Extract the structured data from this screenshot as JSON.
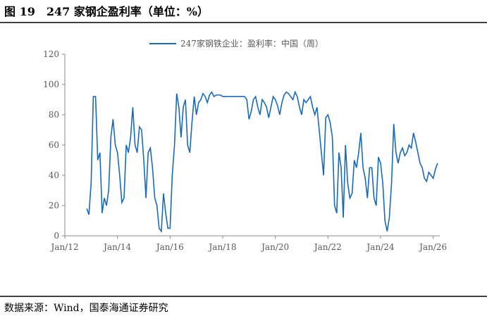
{
  "header": {
    "title": "图 19　247 家钢企盈利率（单位：%）"
  },
  "footer": {
    "source": "数据来源：Wind，国泰海通证券研究"
  },
  "chart_data": {
    "type": "line",
    "x": [
      "2012-11",
      "2012-12",
      "2013-01",
      "2013-02",
      "2013-03",
      "2013-04",
      "2013-05",
      "2013-06",
      "2013-07",
      "2013-08",
      "2013-09",
      "2013-10",
      "2013-11",
      "2013-12",
      "2014-01",
      "2014-02",
      "2014-03",
      "2014-04",
      "2014-05",
      "2014-06",
      "2014-07",
      "2014-08",
      "2014-09",
      "2014-10",
      "2014-11",
      "2014-12",
      "2015-01",
      "2015-02",
      "2015-03",
      "2015-04",
      "2015-05",
      "2015-06",
      "2015-07",
      "2015-08",
      "2015-09",
      "2015-10",
      "2015-11",
      "2015-12",
      "2016-01",
      "2016-02",
      "2016-03",
      "2016-04",
      "2016-05",
      "2016-06",
      "2016-07",
      "2016-08",
      "2016-09",
      "2016-10",
      "2016-11",
      "2016-12",
      "2017-01",
      "2017-02",
      "2017-03",
      "2017-04",
      "2017-05",
      "2017-06",
      "2017-07",
      "2017-08",
      "2017-09",
      "2017-10",
      "2017-11",
      "2017-12",
      "2018-01",
      "2018-02",
      "2018-03",
      "2018-04",
      "2018-05",
      "2018-06",
      "2018-07",
      "2018-08",
      "2018-09",
      "2018-10",
      "2018-11",
      "2018-12",
      "2019-01",
      "2019-02",
      "2019-03",
      "2019-04",
      "2019-05",
      "2019-06",
      "2019-07",
      "2019-08",
      "2019-09",
      "2019-10",
      "2019-11",
      "2019-12",
      "2020-01",
      "2020-02",
      "2020-03",
      "2020-04",
      "2020-05",
      "2020-06",
      "2020-07",
      "2020-08",
      "2020-09",
      "2020-10",
      "2020-11",
      "2020-12",
      "2021-01",
      "2021-02",
      "2021-03",
      "2021-04",
      "2021-05",
      "2021-06",
      "2021-07",
      "2021-08",
      "2021-09",
      "2021-10",
      "2021-11",
      "2021-12",
      "2022-01",
      "2022-02",
      "2022-03",
      "2022-04",
      "2022-05",
      "2022-06",
      "2022-07",
      "2022-08",
      "2022-09",
      "2022-10",
      "2022-11",
      "2022-12",
      "2023-01",
      "2023-02",
      "2023-03",
      "2023-04",
      "2023-05",
      "2023-06",
      "2023-07",
      "2023-08",
      "2023-09",
      "2023-10",
      "2023-11",
      "2023-12",
      "2024-01",
      "2024-02",
      "2024-03",
      "2024-04",
      "2024-05",
      "2024-06",
      "2024-07",
      "2024-08",
      "2024-09",
      "2024-10",
      "2024-11",
      "2024-12",
      "2025-01",
      "2025-02",
      "2025-03",
      "2025-04",
      "2025-05",
      "2025-06",
      "2025-07",
      "2025-08",
      "2025-09",
      "2025-10",
      "2025-11",
      "2025-12",
      "2026-01",
      "2026-02",
      "2026-03"
    ],
    "series": [
      {
        "name": "247家钢铁企业：盈利率：中国（周）",
        "color": "#1b6ab8",
        "values": [
          18,
          14,
          35,
          92,
          92,
          50,
          55,
          15,
          25,
          20,
          30,
          65,
          77,
          60,
          55,
          40,
          22,
          25,
          60,
          55,
          65,
          85,
          60,
          55,
          72,
          70,
          50,
          25,
          55,
          58,
          45,
          25,
          20,
          5,
          3,
          28,
          15,
          5,
          5,
          40,
          60,
          94,
          85,
          65,
          85,
          90,
          60,
          55,
          75,
          92,
          80,
          88,
          90,
          94,
          92,
          88,
          93,
          95,
          92,
          93,
          93,
          93,
          92,
          92,
          92,
          92,
          92,
          92,
          92,
          92,
          92,
          92,
          92,
          90,
          77,
          82,
          90,
          92,
          85,
          80,
          90,
          88,
          85,
          78,
          85,
          92,
          90,
          86,
          80,
          88,
          93,
          95,
          94,
          92,
          90,
          95,
          92,
          85,
          80,
          90,
          88,
          90,
          92,
          85,
          80,
          85,
          70,
          55,
          40,
          78,
          80,
          75,
          65,
          20,
          15,
          55,
          45,
          12,
          60,
          35,
          25,
          28,
          50,
          45,
          55,
          68,
          45,
          38,
          25,
          45,
          45,
          25,
          20,
          52,
          48,
          35,
          10,
          3,
          12,
          35,
          74,
          55,
          48,
          55,
          58,
          53,
          55,
          60,
          58,
          68,
          62,
          55,
          48,
          45,
          38,
          36,
          42,
          40,
          38,
          44,
          48
        ]
      }
    ],
    "xlim": [
      "2012-01",
      "2026-04"
    ],
    "xticks": [
      {
        "value": "2012-01",
        "label": "Jan/12"
      },
      {
        "value": "2014-01",
        "label": "Jan/14"
      },
      {
        "value": "2016-01",
        "label": "Jan/16"
      },
      {
        "value": "2018-01",
        "label": "Jan/18"
      },
      {
        "value": "2020-01",
        "label": "Jan/20"
      },
      {
        "value": "2022-01",
        "label": "Jan/22"
      },
      {
        "value": "2024-01",
        "label": "Jan/24"
      },
      {
        "value": "2026-01",
        "label": "Jan/26"
      }
    ],
    "ylim": [
      0,
      120
    ],
    "yticks": [
      0,
      20,
      40,
      60,
      80,
      100,
      120
    ]
  }
}
